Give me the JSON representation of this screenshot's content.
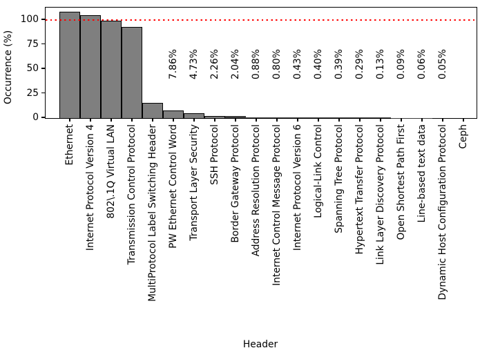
{
  "chart_data": {
    "type": "bar",
    "title": "",
    "xlabel": "Header",
    "ylabel": "Occurrence (%)",
    "ylim": [
      0,
      112.5
    ],
    "yticks": [
      0,
      25,
      50,
      75,
      100
    ],
    "grid": false,
    "legend_position": "none",
    "bar_color": "#7f7f7f",
    "bar_edge_color": "#000000",
    "reference_line": {
      "y": 100,
      "color": "#ff0000",
      "style": "dotted"
    },
    "categories": [
      "Ethernet",
      "Internet Protocol Version 4",
      "802\\.1Q Virtual LAN",
      "Transmission Control Protocol",
      "MultiProtocol Label Switching Header",
      "PW Ethernet Control Word",
      "Transport Layer Security",
      "SSH Protocol",
      "Border Gateway Protocol",
      "Address Resolution Protocol",
      "Internet Control Message Protocol",
      "Internet Protocol Version 6",
      "Logical-Link Control",
      "Spanning Tree Protocol",
      "Hypertext Transfer Protocol",
      "Link Layer Discovery Protocol",
      "Open Shortest Path First",
      "Line-based text data",
      "Dynamic Host Configuration Protocol",
      "Ceph"
    ],
    "values": [
      108.2,
      104.6,
      99.4,
      92.8,
      15.2,
      7.86,
      4.73,
      2.26,
      2.04,
      0.88,
      0.8,
      0.43,
      0.4,
      0.39,
      0.29,
      0.13,
      0.09,
      0.06,
      0.05,
      0.02
    ],
    "bar_value_labels": [
      "",
      "",
      "",
      "",
      "",
      "7.86%",
      "4.73%",
      "2.26%",
      "2.04%",
      "0.88%",
      "0.80%",
      "0.43%",
      "0.40%",
      "0.39%",
      "0.29%",
      "0.13%",
      "0.09%",
      "0.06%",
      "0.05%",
      ""
    ]
  }
}
